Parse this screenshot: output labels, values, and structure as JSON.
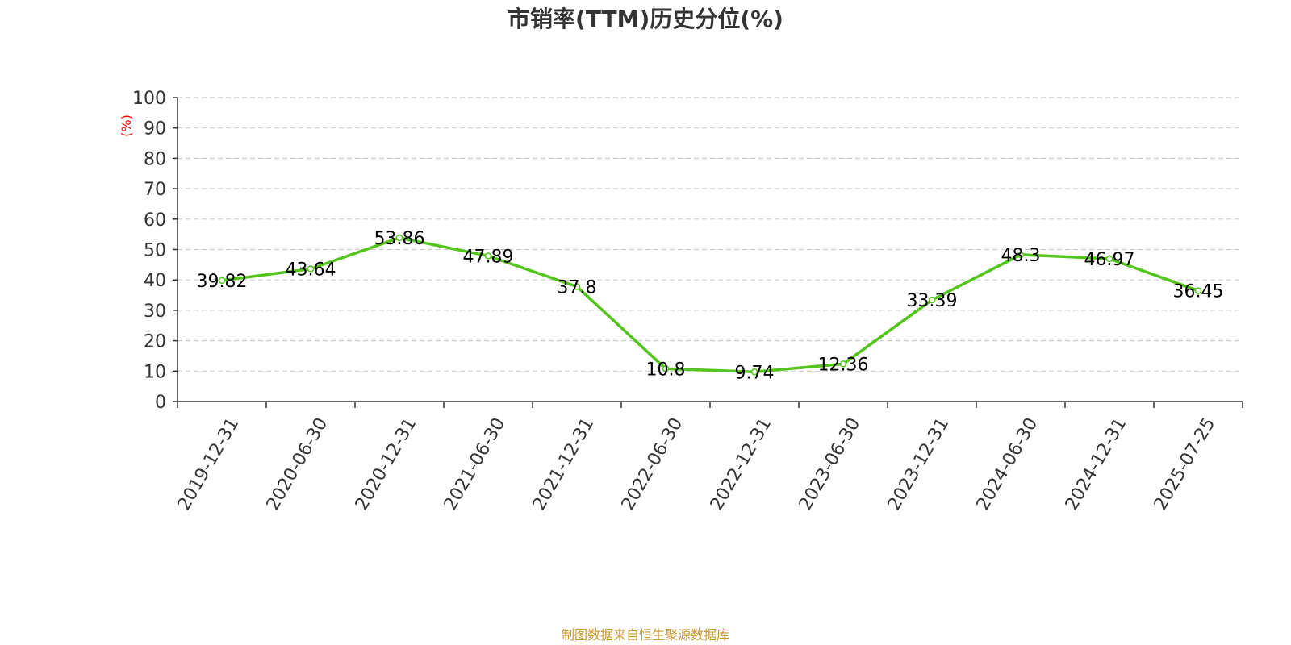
{
  "chart_data": {
    "type": "line",
    "title": "市销率(TTM)历史分位(%)",
    "ylabel": "(%)",
    "xlabel": "",
    "ylim": [
      0,
      100
    ],
    "yticks": [
      0,
      10,
      20,
      30,
      40,
      50,
      60,
      70,
      80,
      90,
      100
    ],
    "categories": [
      "2019-12-31",
      "2020-06-30",
      "2020-12-31",
      "2021-06-30",
      "2021-12-31",
      "2022-06-30",
      "2022-12-31",
      "2023-06-30",
      "2023-12-31",
      "2024-06-30",
      "2024-12-31",
      "2025-07-25"
    ],
    "series": [
      {
        "values": [
          39.82,
          43.64,
          53.86,
          47.89,
          37.8,
          10.8,
          9.74,
          12.36,
          33.39,
          48.3,
          46.97,
          36.45
        ]
      }
    ],
    "data_labels": [
      "39.82",
      "43.64",
      "53.86",
      "47.89",
      "37.8",
      "10.8",
      "9.74",
      "12.36",
      "33.39",
      "48.3",
      "46.97",
      "36.45"
    ],
    "grid": "horizontal-dashed",
    "legend": "none"
  },
  "colors": {
    "line": "#52c41a",
    "axis": "#333333",
    "grid": "#cccccc",
    "ylabel": "#ff0000",
    "source": "#c8962d"
  },
  "source": "制图数据来自恒生聚源数据库"
}
